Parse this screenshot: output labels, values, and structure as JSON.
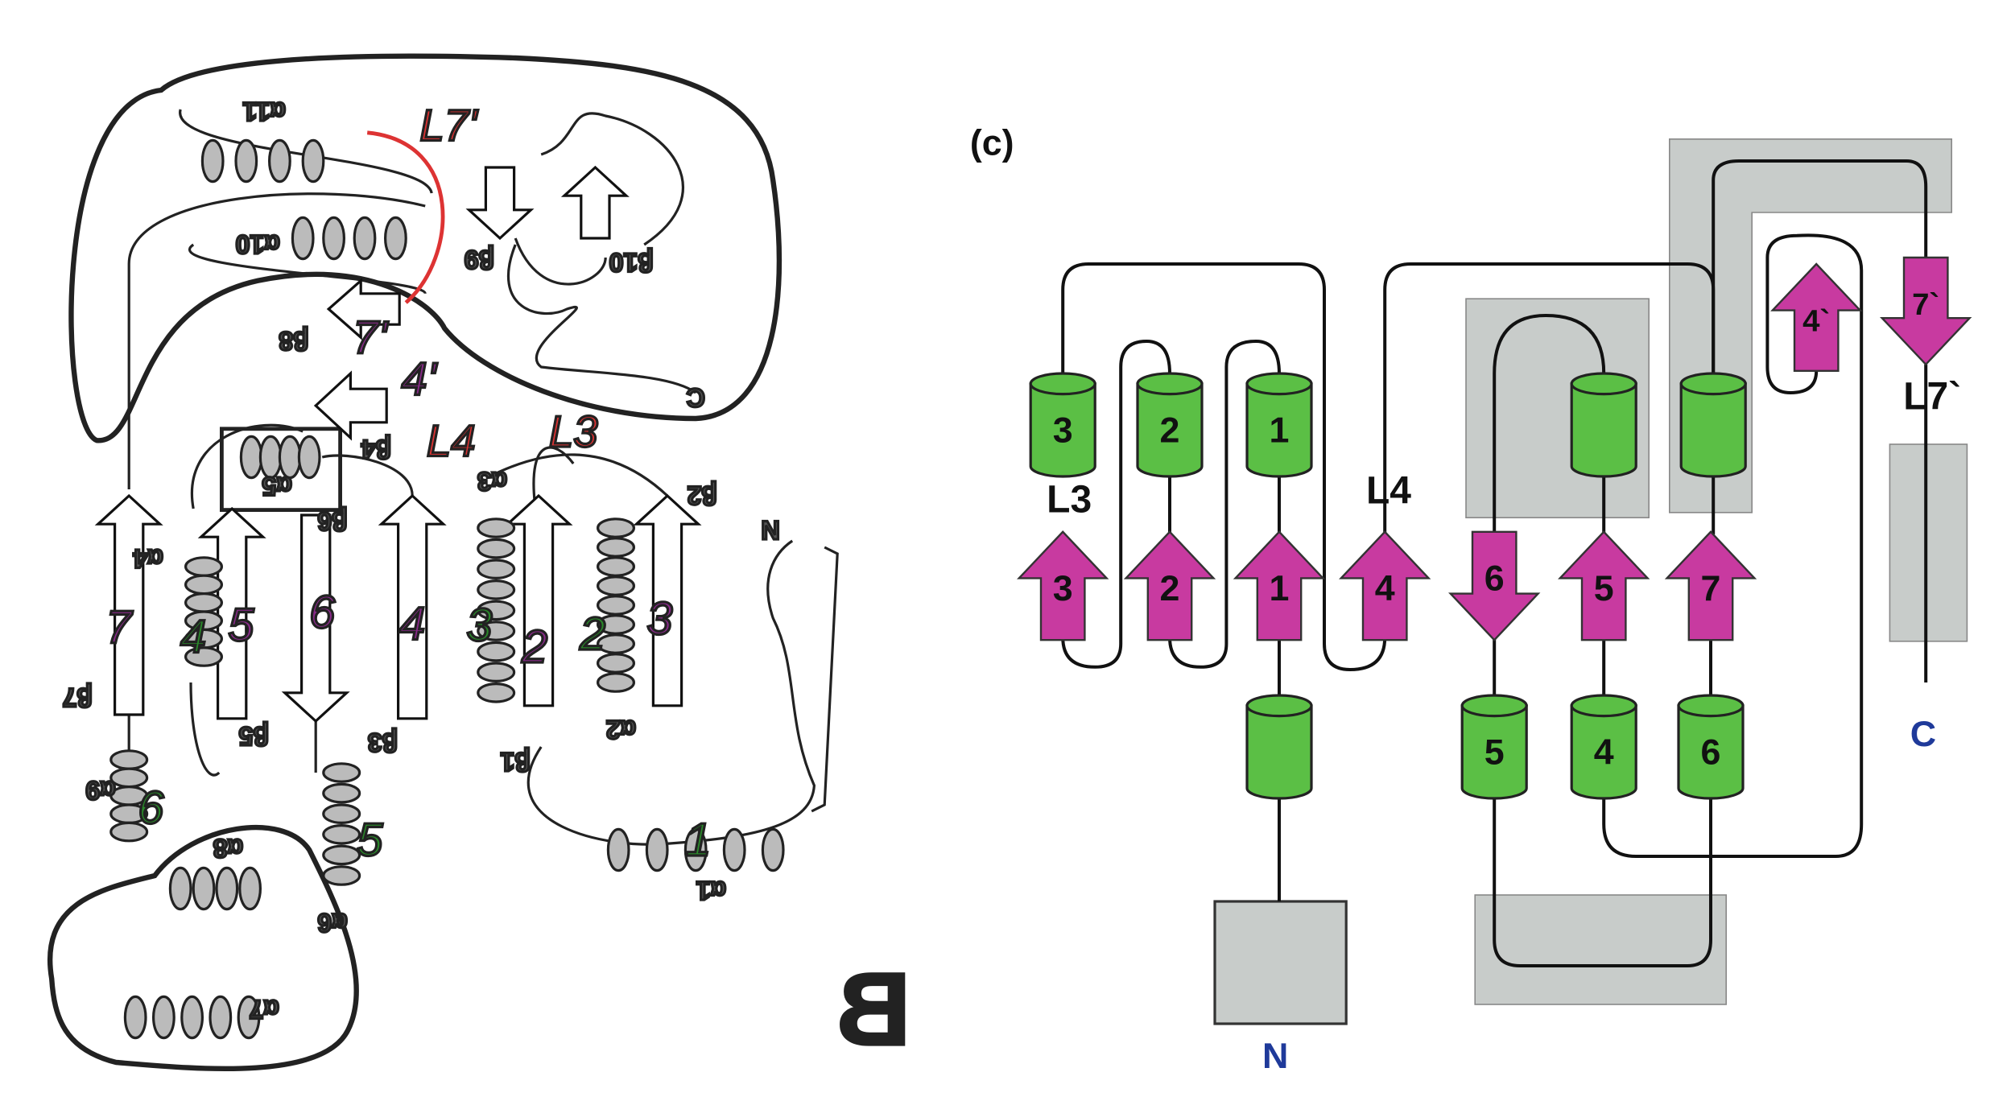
{
  "left_panel": {
    "label": "B",
    "structure_labels": [
      "α11",
      "α10",
      "β9",
      "β10",
      "β8",
      "β4",
      "α5",
      "β6",
      "α4",
      "β5",
      "β7",
      "β3",
      "β1",
      "α2",
      "β2",
      "α3",
      "N",
      "C",
      "α9",
      "α8",
      "α6",
      "α7",
      "α1"
    ],
    "red_annotations": [
      "L7'",
      "L4",
      "L3"
    ],
    "purple_annotations": [
      "7'",
      "4'",
      "7",
      "5",
      "6",
      "4",
      "2",
      "3"
    ],
    "green_annotations": [
      "4",
      "3",
      "2",
      "6",
      "5",
      "1"
    ]
  },
  "right_panel": {
    "label": "(c)",
    "top_helices": [
      "3",
      "2",
      "1"
    ],
    "strands": [
      "3",
      "2",
      "1",
      "4",
      "6",
      "5",
      "7"
    ],
    "bottom_helices": [
      "5",
      "4",
      "6"
    ],
    "prime_strands": [
      "4`",
      "7`"
    ],
    "loop_labels": [
      "L3",
      "L4",
      "L7`"
    ],
    "termini": [
      "N",
      "C"
    ]
  }
}
